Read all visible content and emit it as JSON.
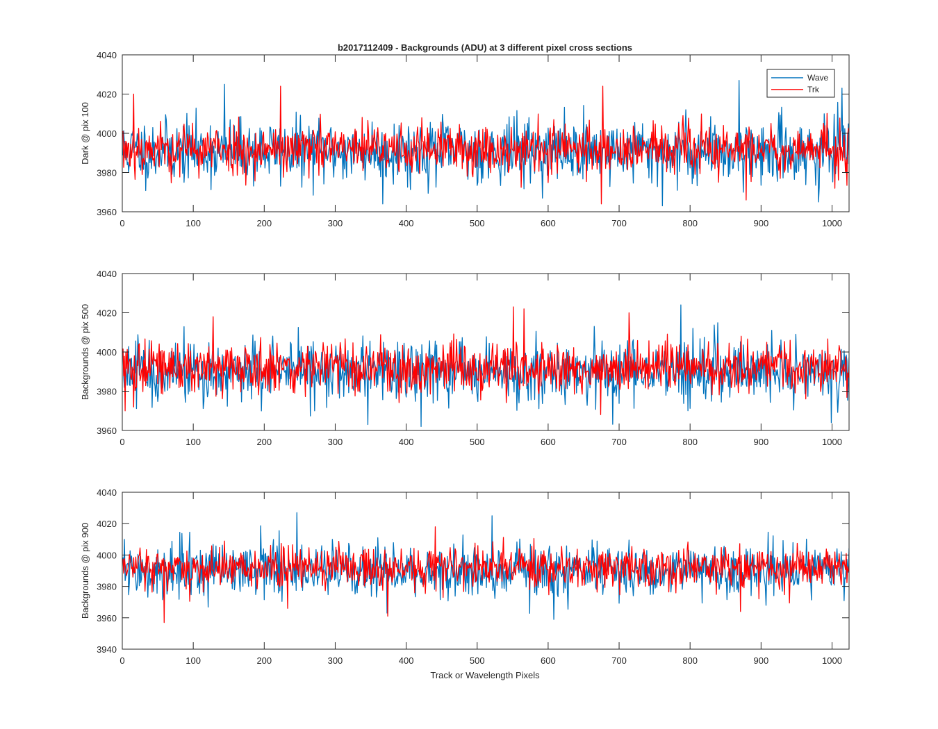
{
  "figure": {
    "title": "b2017112409 - Backgrounds (ADU) at 3 different pixel cross sections",
    "xlabel": "Track or Wavelength Pixels",
    "legend": {
      "position": "top-right",
      "entries": [
        "Wave",
        "Trk"
      ]
    },
    "colors": {
      "Wave": "#0072BD",
      "Trk": "#FF0000",
      "axes": "#262626"
    }
  },
  "chart_data": [
    {
      "type": "line",
      "ylabel": "Dark @ pix 100",
      "xlim": [
        0,
        1024
      ],
      "ylim": [
        3960,
        4040
      ],
      "xticks": [
        0,
        100,
        200,
        300,
        400,
        500,
        600,
        700,
        800,
        900,
        1000
      ],
      "yticks": [
        3960,
        3980,
        4000,
        4020,
        4040
      ],
      "grid": false,
      "series": [
        {
          "name": "Wave",
          "mean": 3991,
          "std": 8,
          "n": 1024,
          "extremes": [
            [
              143,
              4025
            ],
            [
              868,
              4027
            ],
            [
              1013,
              4023
            ],
            [
              366,
              3964
            ],
            [
              760,
              3963
            ],
            [
              980,
              3965
            ]
          ]
        },
        {
          "name": "Trk",
          "mean": 3992,
          "std": 6.5,
          "n": 1024,
          "extremes": [
            [
              15,
              4020
            ],
            [
              222,
              4024
            ],
            [
              676,
              4024
            ],
            [
              674,
              3964
            ],
            [
              878,
              3966
            ],
            [
              1003,
              3972
            ]
          ]
        }
      ]
    },
    {
      "type": "line",
      "ylabel": "Backgrounds @ pix 500",
      "xlim": [
        0,
        1024
      ],
      "ylim": [
        3960,
        4040
      ],
      "xticks": [
        0,
        100,
        200,
        300,
        400,
        500,
        600,
        700,
        800,
        900,
        1000
      ],
      "yticks": [
        3960,
        3980,
        4000,
        4020,
        4040
      ],
      "grid": false,
      "series": [
        {
          "name": "Wave",
          "mean": 3990,
          "std": 8,
          "n": 1024,
          "extremes": [
            [
              786,
              4024
            ],
            [
              345,
              3963
            ],
            [
              420,
              3962
            ],
            [
              998,
              3964
            ],
            [
              270,
              3970
            ]
          ]
        },
        {
          "name": "Trk",
          "mean": 3992,
          "std": 6.5,
          "n": 1024,
          "extremes": [
            [
              550,
              4023
            ],
            [
              127,
              4018
            ],
            [
              565,
              4022
            ],
            [
              713,
              4020
            ],
            [
              3,
              3970
            ],
            [
              15,
              3972
            ]
          ]
        }
      ]
    },
    {
      "type": "line",
      "ylabel": "Backgrounds @ pix 900",
      "xlim": [
        0,
        1024
      ],
      "ylim": [
        3940,
        4040
      ],
      "xticks": [
        0,
        100,
        200,
        300,
        400,
        500,
        600,
        700,
        800,
        900,
        1000
      ],
      "yticks": [
        3940,
        3960,
        3980,
        4000,
        4020,
        4040
      ],
      "grid": false,
      "series": [
        {
          "name": "Wave",
          "mean": 3990,
          "std": 8,
          "n": 1024,
          "extremes": [
            [
              245,
              4027
            ],
            [
              520,
              4025
            ],
            [
              607,
              3959
            ],
            [
              372,
              3963
            ]
          ]
        },
        {
          "name": "Trk",
          "mean": 3992,
          "std": 6.5,
          "n": 1024,
          "extremes": [
            [
              58,
              3957
            ],
            [
              373,
              3961
            ],
            [
              232,
              3966
            ],
            [
              870,
              3964
            ],
            [
              440,
              4018
            ]
          ]
        }
      ]
    }
  ]
}
